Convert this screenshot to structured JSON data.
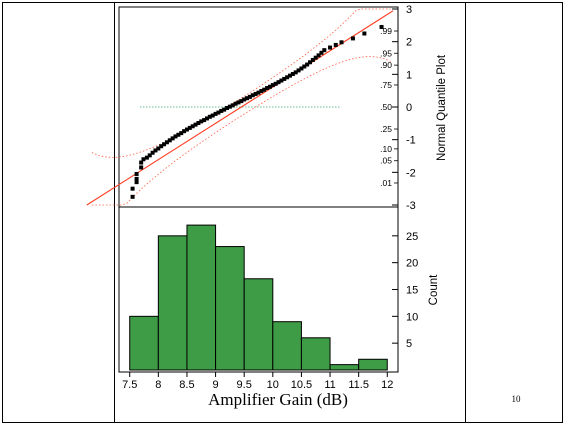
{
  "page_number": "10",
  "chart_data": [
    {
      "type": "scatter",
      "subtype": "normal-quantile-plot",
      "title": "",
      "ylabel": "Normal Quantile Plot",
      "y_quantile_ticks": [
        "-3",
        "-2",
        "-1",
        "0",
        "1",
        "2",
        "3"
      ],
      "y_probability_ticks": [
        {
          "label": ".01",
          "z": -2.326
        },
        {
          "label": ".05",
          "z": -1.645
        },
        {
          "label": ".10",
          "z": -1.282
        },
        {
          "label": ".25",
          "z": -0.674
        },
        {
          "label": ".50",
          "z": 0
        },
        {
          "label": ".75",
          "z": 0.674
        },
        {
          "label": ".90",
          "z": 1.282
        },
        {
          "label": ".95",
          "z": 1.645
        },
        {
          "label": ".99",
          "z": 2.326
        }
      ],
      "ylim": [
        -3,
        3
      ],
      "xlim": [
        7.4,
        12.1
      ],
      "reference_line": {
        "mean": 9.45,
        "sd": 0.9
      },
      "points_x": [
        7.55,
        7.55,
        7.62,
        7.62,
        7.62,
        7.7,
        7.7,
        7.74,
        7.8,
        7.85,
        7.9,
        7.95,
        8.0,
        8.05,
        8.1,
        8.15,
        8.2,
        8.25,
        8.3,
        8.35,
        8.4,
        8.45,
        8.5,
        8.55,
        8.6,
        8.65,
        8.7,
        8.75,
        8.8,
        8.85,
        8.9,
        8.95,
        9.0,
        9.05,
        9.1,
        9.15,
        9.2,
        9.25,
        9.3,
        9.35,
        9.4,
        9.45,
        9.5,
        9.55,
        9.6,
        9.65,
        9.7,
        9.75,
        9.8,
        9.85,
        9.9,
        9.95,
        10.0,
        10.05,
        10.1,
        10.15,
        10.2,
        10.25,
        10.3,
        10.35,
        10.4,
        10.45,
        10.5,
        10.55,
        10.6,
        10.65,
        10.7,
        10.75,
        10.8,
        10.85,
        10.9,
        11.0,
        11.1,
        11.2,
        11.4,
        11.6,
        11.9
      ],
      "points_z": [
        -2.75,
        -2.5,
        -2.3,
        -2.2,
        -2.05,
        -1.85,
        -1.7,
        -1.6,
        -1.55,
        -1.48,
        -1.4,
        -1.33,
        -1.27,
        -1.2,
        -1.14,
        -1.08,
        -1.02,
        -0.96,
        -0.9,
        -0.85,
        -0.8,
        -0.74,
        -0.69,
        -0.64,
        -0.59,
        -0.54,
        -0.49,
        -0.44,
        -0.4,
        -0.35,
        -0.3,
        -0.26,
        -0.21,
        -0.17,
        -0.12,
        -0.08,
        -0.03,
        0.01,
        0.05,
        0.1,
        0.14,
        0.18,
        0.23,
        0.27,
        0.31,
        0.36,
        0.4,
        0.44,
        0.49,
        0.53,
        0.58,
        0.62,
        0.67,
        0.71,
        0.76,
        0.81,
        0.86,
        0.91,
        0.96,
        1.01,
        1.06,
        1.12,
        1.18,
        1.24,
        1.3,
        1.37,
        1.44,
        1.51,
        1.58,
        1.66,
        1.74,
        1.82,
        1.9,
        1.98,
        2.1,
        2.25,
        2.45
      ]
    },
    {
      "type": "bar",
      "subtype": "histogram",
      "xlabel": "Amplifier Gain (dB)",
      "ylabel": "Count",
      "bin_edges": [
        7.5,
        8,
        8.5,
        9,
        9.5,
        10,
        10.5,
        11,
        11.5,
        12
      ],
      "x_tick_labels": [
        "7.5",
        "8",
        "8.5",
        "9",
        "9.5",
        "10",
        "10.5",
        "11",
        "11.5",
        "12"
      ],
      "values": [
        10,
        25,
        27,
        23,
        17,
        9,
        6,
        1,
        2
      ],
      "y_tick_labels": [
        "5",
        "10",
        "15",
        "20",
        "25"
      ],
      "ylim": [
        0,
        30
      ],
      "bar_color": "#3e9b46"
    }
  ]
}
